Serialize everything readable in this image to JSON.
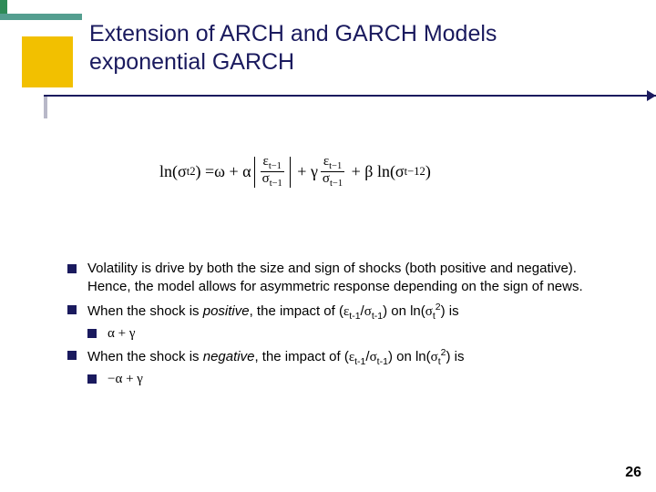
{
  "title_line1": "Extension of ARCH and GARCH Models",
  "title_line2": "exponential GARCH",
  "bullets": {
    "b1": "Volatility is drive by both the size and sign of shocks (both positive and negative).  Hence, the model allows for asymmetric response depending on the sign of news.",
    "b2_pre": "When the shock is ",
    "b2_word": "positive",
    "b2_post": ", the impact of (",
    "b2_sub1": "α + γ",
    "b3_pre": "When the shock is ",
    "b3_word": "negative",
    "b3_post": ", the impact of (",
    "b3_sub1": "−α + γ",
    "frac_ratio": "ε",
    "on_txt": ") on ln(",
    "sigma": "σ",
    "is_txt": ") is"
  },
  "formula": {
    "lhs": "ln(σ",
    "omega": "ω",
    "alpha": "α",
    "gamma": "γ",
    "beta": "β",
    "eps": "ε",
    "sig": "σ"
  },
  "page_number": "26"
}
